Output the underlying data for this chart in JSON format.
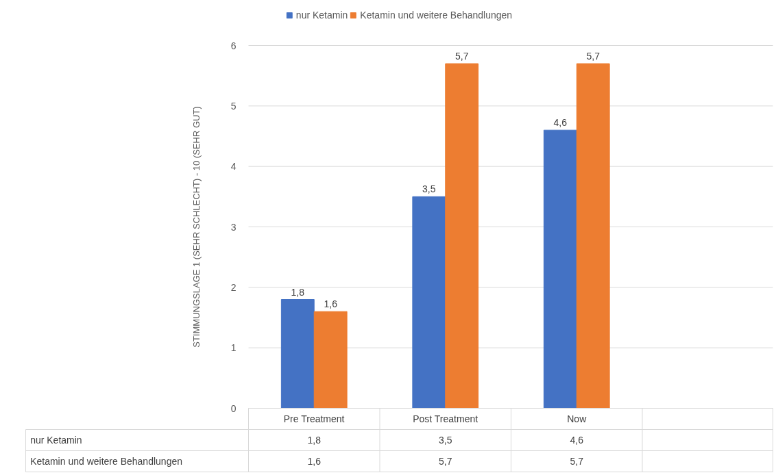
{
  "chart_data": {
    "type": "bar",
    "ylabel": "STIMMUNGSLAGE 1 (SEHR SCHLECHT) - 10 (SEHR GUT)",
    "categories": [
      "Pre Treatment",
      "Post Treatment",
      "Now",
      null
    ],
    "series": [
      {
        "name": "nur Ketamin",
        "color": "#4472c4",
        "values": [
          1.8,
          3.5,
          4.6,
          null
        ],
        "value_labels": [
          "1,8",
          "3,5",
          "4,6",
          null
        ]
      },
      {
        "name": "Ketamin und weitere Behandlungen",
        "color": "#ed7d31",
        "values": [
          1.6,
          5.7,
          5.7,
          null
        ],
        "value_labels": [
          "1,6",
          "5,7",
          "5,7",
          null
        ]
      }
    ],
    "ylim": [
      0,
      6
    ],
    "yticks": [
      0,
      1,
      2,
      3,
      4,
      5,
      6
    ],
    "grid": "y",
    "legend": "top"
  }
}
